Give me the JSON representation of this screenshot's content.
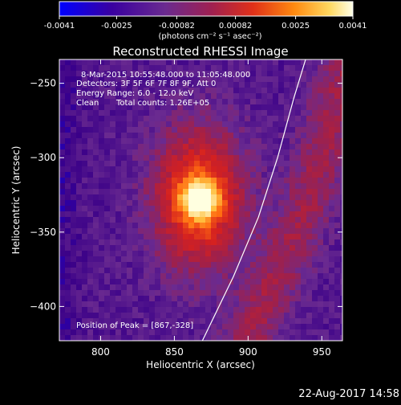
{
  "colorbar": {
    "tick_labels": [
      "-0.0041",
      "-0.0025",
      "-0.00082",
      "0.00082",
      "0.0025",
      "0.0041"
    ],
    "units": "(photons cm⁻² s⁻¹ asec⁻²)",
    "range": [
      -0.0041,
      0.0041
    ]
  },
  "chart_data": {
    "type": "heatmap",
    "title": "Reconstructed RHESSI Image",
    "xlabel": "Heliocentric X (arcsec)",
    "ylabel": "Heliocentric Y (arcsec)",
    "xlim": [
      772,
      964
    ],
    "ylim": [
      -423,
      -234
    ],
    "xticks": [
      800,
      850,
      900,
      950
    ],
    "yticks": [
      -250,
      -300,
      -350,
      -400
    ],
    "peak": {
      "x": 867,
      "y": -328
    },
    "limb_curve": [
      {
        "x": 869,
        "y": -423
      },
      {
        "x": 890,
        "y": -380
      },
      {
        "x": 907,
        "y": -340
      },
      {
        "x": 920,
        "y": -300
      },
      {
        "x": 931,
        "y": -260
      },
      {
        "x": 939,
        "y": -234
      }
    ],
    "annotations": {
      "time_range": "8-Mar-2015 10:55:48.000 to 11:05:48.000",
      "detectors": "Detectors: 3F 5F 6F 7F 8F 9F, Att 0",
      "energy": "Energy Range: 6.0 - 12.0 keV",
      "clean": "Clean",
      "counts": "Total counts: 1.26E+05",
      "peak_position": "Position of Peak = [867,-328]"
    },
    "colormap": [
      "#0000ff",
      "#3a0088",
      "#6a2a90",
      "#a0204a",
      "#d42020",
      "#ff6a10",
      "#ffc040",
      "#ffffe0"
    ]
  },
  "footer": {
    "date_stamp": "22-Aug-2017 14:58"
  }
}
